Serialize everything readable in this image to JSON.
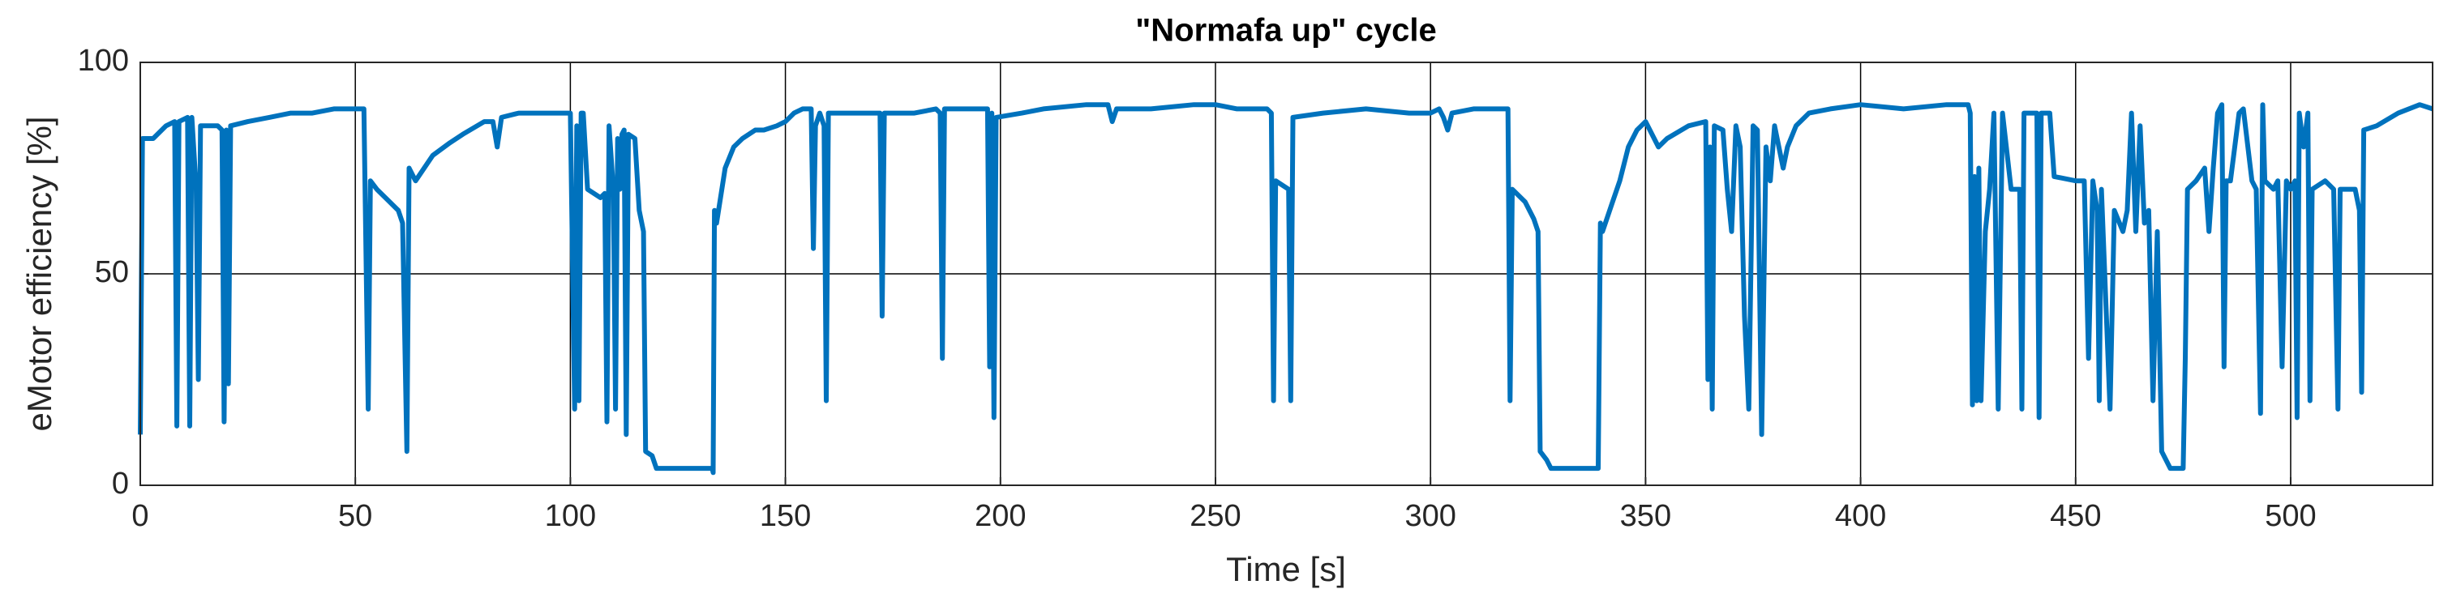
{
  "chart_data": {
    "type": "line",
    "title": "\"Normafa up\" cycle",
    "x_label": "Time [s]",
    "y_label": "eMotor efficiency [%]",
    "xlim": [
      0,
      533
    ],
    "ylim": [
      0,
      100
    ],
    "xticks": [
      0,
      50,
      100,
      150,
      200,
      250,
      300,
      350,
      400,
      450,
      500
    ],
    "yticks": [
      0,
      50,
      100
    ],
    "grid": true,
    "x": [
      0,
      0.5,
      3,
      6,
      8,
      8.5,
      9,
      11,
      11.5,
      12,
      13,
      13.5,
      14,
      18,
      19,
      19.5,
      20,
      20.5,
      21,
      25,
      30,
      35,
      40,
      45,
      50,
      52,
      53,
      53.5,
      55,
      58,
      60,
      61,
      62,
      62.5,
      64,
      68,
      72,
      75,
      80,
      82,
      83,
      84,
      88,
      95,
      100,
      101,
      101.5,
      102,
      102.5,
      103,
      104,
      107,
      108,
      108.5,
      109,
      110,
      110.5,
      111,
      111.5,
      112,
      112.5,
      113,
      113.5,
      115,
      116,
      117,
      117.5,
      119,
      120,
      125,
      130,
      133,
      133.2,
      133.5,
      134,
      136,
      138,
      140,
      143,
      145,
      148,
      150,
      152,
      154,
      156,
      156.5,
      157,
      158,
      159,
      159.5,
      160,
      165,
      170,
      172,
      172.5,
      173,
      180,
      185,
      186,
      186.5,
      187,
      195,
      197,
      197.5,
      198,
      198.5,
      199,
      205,
      210,
      220,
      225,
      226,
      227,
      235,
      245,
      250,
      255,
      262,
      263,
      263.5,
      264,
      267,
      267.5,
      268,
      275,
      285,
      295,
      300,
      302,
      303,
      304,
      305,
      310,
      315,
      318,
      318.5,
      319,
      322,
      324,
      325,
      325.5,
      327,
      328,
      335,
      338,
      339,
      339.5,
      340,
      342,
      344,
      346,
      348,
      350,
      353,
      355,
      360,
      364,
      364.5,
      365,
      365.5,
      366,
      368,
      369,
      370,
      371,
      372,
      373,
      374,
      375,
      376,
      377,
      378,
      379,
      380,
      382,
      383,
      385,
      388,
      393,
      400,
      410,
      420,
      425,
      425.5,
      426,
      426.5,
      427,
      427.5,
      428,
      429,
      430,
      431,
      432,
      433,
      435,
      437,
      437.5,
      438,
      440,
      441,
      441.5,
      442,
      444,
      445,
      450,
      452,
      453,
      454,
      455,
      455.5,
      456,
      458,
      459,
      461,
      462,
      463,
      464,
      465,
      466,
      467,
      468,
      469,
      470,
      472,
      475,
      475.5,
      476,
      478,
      480,
      481,
      482,
      483,
      484,
      484.5,
      485,
      486,
      488,
      489,
      491,
      492,
      493,
      493.5,
      494,
      496,
      497,
      498,
      499,
      500,
      501,
      501.5,
      502,
      503,
      504,
      504.5,
      505,
      508,
      510,
      511,
      511.5,
      513,
      515,
      516,
      516.5,
      517,
      520,
      525,
      530,
      533
    ],
    "series": [
      {
        "color": "#0072bd",
        "values": [
          12,
          82,
          82,
          85,
          86,
          14,
          86,
          87,
          14,
          87,
          70,
          25,
          85,
          85,
          84,
          15,
          84,
          24,
          85,
          86,
          87,
          88,
          88,
          89,
          89,
          89,
          18,
          72,
          70,
          67,
          65,
          62,
          8,
          75,
          72,
          78,
          81,
          83,
          86,
          86,
          80,
          87,
          88,
          88,
          88,
          18,
          85,
          20,
          88,
          88,
          70,
          68,
          69,
          15,
          85,
          70,
          18,
          82,
          70,
          83,
          84,
          12,
          83,
          82,
          65,
          60,
          8,
          7,
          4,
          4,
          4,
          4,
          3,
          65,
          62,
          75,
          80,
          82,
          84,
          84,
          85,
          86,
          88,
          89,
          89,
          56,
          85,
          88,
          85,
          20,
          88,
          88,
          88,
          88,
          40,
          88,
          88,
          89,
          88,
          30,
          89,
          89,
          89,
          28,
          88,
          16,
          87,
          88,
          89,
          90,
          90,
          86,
          89,
          89,
          90,
          90,
          89,
          89,
          88,
          20,
          72,
          70,
          20,
          87,
          88,
          89,
          88,
          88,
          89,
          87,
          84,
          88,
          89,
          89,
          89,
          20,
          70,
          67,
          63,
          60,
          8,
          6,
          4,
          4,
          4,
          4,
          62,
          60,
          66,
          72,
          80,
          84,
          86,
          80,
          82,
          85,
          86,
          25,
          80,
          18,
          85,
          84,
          70,
          60,
          85,
          80,
          40,
          18,
          85,
          84,
          12,
          80,
          72,
          85,
          75,
          80,
          85,
          88,
          89,
          90,
          89,
          90,
          90,
          88,
          19,
          73,
          20,
          75,
          20,
          60,
          70,
          88,
          18,
          88,
          70,
          70,
          18,
          88,
          88,
          88,
          16,
          88,
          88,
          73,
          72,
          72,
          30,
          72,
          65,
          20,
          70,
          18,
          65,
          60,
          65,
          88,
          60,
          85,
          62,
          65,
          20,
          60,
          8,
          4,
          4,
          30,
          70,
          72,
          75,
          60,
          75,
          88,
          90,
          28,
          72,
          72,
          88,
          89,
          72,
          70,
          17,
          90,
          72,
          70,
          72,
          28,
          72,
          70,
          72,
          16,
          88,
          80,
          88,
          20,
          70,
          72,
          70,
          18,
          70,
          70,
          70,
          65,
          22,
          84,
          85,
          88,
          90,
          89
        ]
      }
    ]
  }
}
